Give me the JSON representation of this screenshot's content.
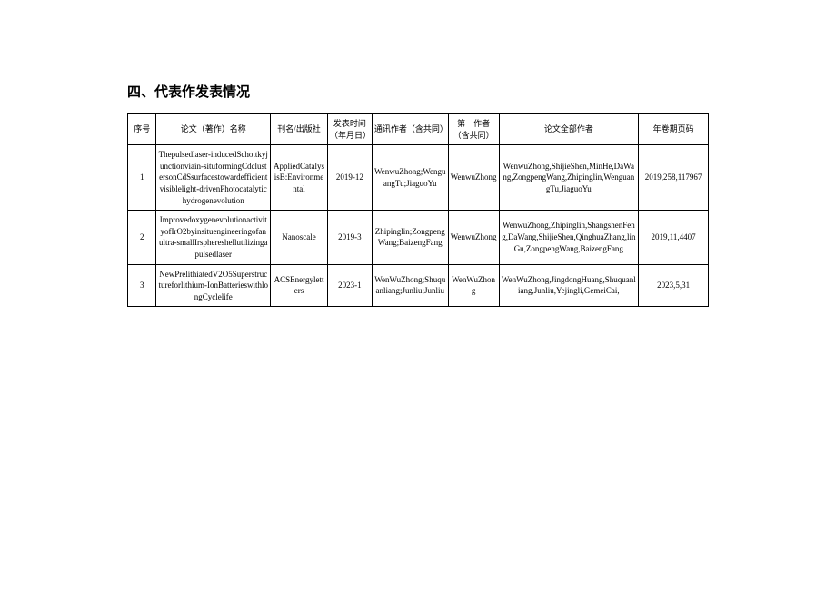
{
  "section_title": "四、代表作发表情况",
  "table": {
    "headers": {
      "seq": "序号",
      "paper_title": "论文（著作）名称",
      "journal": "刊名/出版社",
      "pub_date": "发表时间（年月日）",
      "corr_author": "通讯作者（含共同）",
      "first_author": "第一作者（含共同）",
      "all_authors": "论文全部作者",
      "volume": "年卷期页码"
    },
    "rows": [
      {
        "seq": "1",
        "paper_title": "Thepulsedlaser-inducedSchottkyjunctionviain-situformingCdclustersonCdSsurfacestowardefficientvisiblelight-drivenPhotocatalytichydrogenevolution",
        "journal": "AppliedCatalysisB:Environmental",
        "pub_date": "2019-12",
        "corr_author": "WenwuZhong;WenguangTu;JiaguoYu",
        "first_author": "WenwuZhong",
        "all_authors": "WenwuZhong,ShijieShen,MinHe,DaWang,ZongpengWang,Zhipinglin,WenguangTu,JiaguoYu",
        "volume": "2019,258,117967"
      },
      {
        "seq": "2",
        "paper_title": "ImprovedoxygenevolutionactivityofIrO2byinsituengineeringofanultra-smallIrsphereshellutilizingapulsedlaser",
        "journal": "Nanoscale",
        "pub_date": "2019-3",
        "corr_author": "Zhipinglin;ZongpengWang;BaizengFang",
        "first_author": "WenwuZhong",
        "all_authors": "WenwuZhong,Zhipinglin,ShangshenFeng,DaWang,ShijieShen,QinghuaZhang,linGu,ZongpengWang,BaizengFang",
        "volume": "2019,11,4407"
      },
      {
        "seq": "3",
        "paper_title": "NewPrelithiatedV2O5Superstructureforlithium-IonBatterieswithlongCyclelife",
        "journal": "ACSEnergyletters",
        "pub_date": "2023-1",
        "corr_author": "WenWuZhong;Shuquanliang;Junliu;Junliu",
        "first_author": "WenWuZhong",
        "all_authors": "WenWuZhong,JingdongHuang,Shuquanliang,Junliu,Yejingli,GemeiCai,",
        "volume": "2023,5,31"
      }
    ]
  }
}
